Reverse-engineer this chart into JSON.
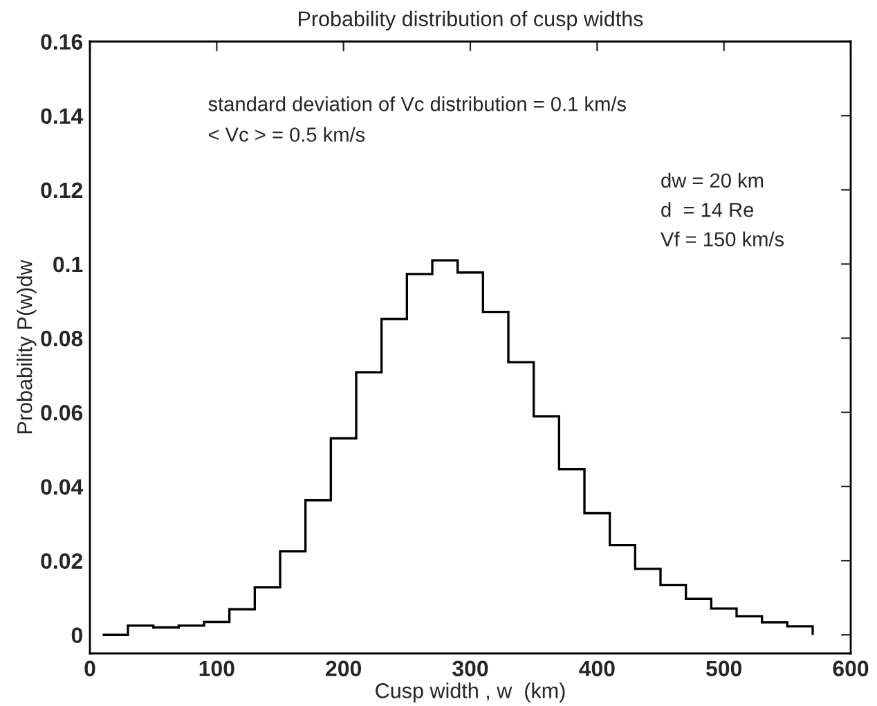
{
  "chart_data": {
    "type": "histogram",
    "title": "Probability distribution of cusp widths",
    "xlabel": "Cusp width , w  (km)",
    "ylabel": "Probability P(w)dw",
    "bins": [
      10,
      30,
      50,
      70,
      90,
      110,
      130,
      150,
      170,
      190,
      210,
      230,
      250,
      270,
      290,
      310,
      330,
      350,
      370,
      390,
      410,
      430,
      450,
      470,
      490,
      510,
      530,
      550,
      570
    ],
    "values": [
      0,
      0.0025,
      0.002,
      0.0025,
      0.0035,
      0.0069,
      0.0128,
      0.0225,
      0.0363,
      0.053,
      0.0708,
      0.0852,
      0.0973,
      0.101,
      0.0977,
      0.0871,
      0.0735,
      0.0589,
      0.0447,
      0.0328,
      0.0242,
      0.0178,
      0.0134,
      0.0097,
      0.0071,
      0.005,
      0.0034,
      0.0023
    ],
    "color": "#000000",
    "xlim": [
      0,
      600
    ],
    "xticks": [
      0,
      100,
      200,
      300,
      400,
      500,
      600
    ],
    "ylim": [
      -0.005,
      0.16
    ],
    "yticks": [
      0,
      0.02,
      0.04,
      0.06,
      0.08,
      0.1,
      0.12,
      0.14,
      0.16
    ],
    "grid": false,
    "legend": false,
    "annotations": [
      "standard deviation of Vc distribution = 0.1 km/s",
      "< Vc > = 0.5 km/s",
      "dw = 20 km",
      "d  = 14 Re",
      "Vf = 150 km/s"
    ]
  }
}
